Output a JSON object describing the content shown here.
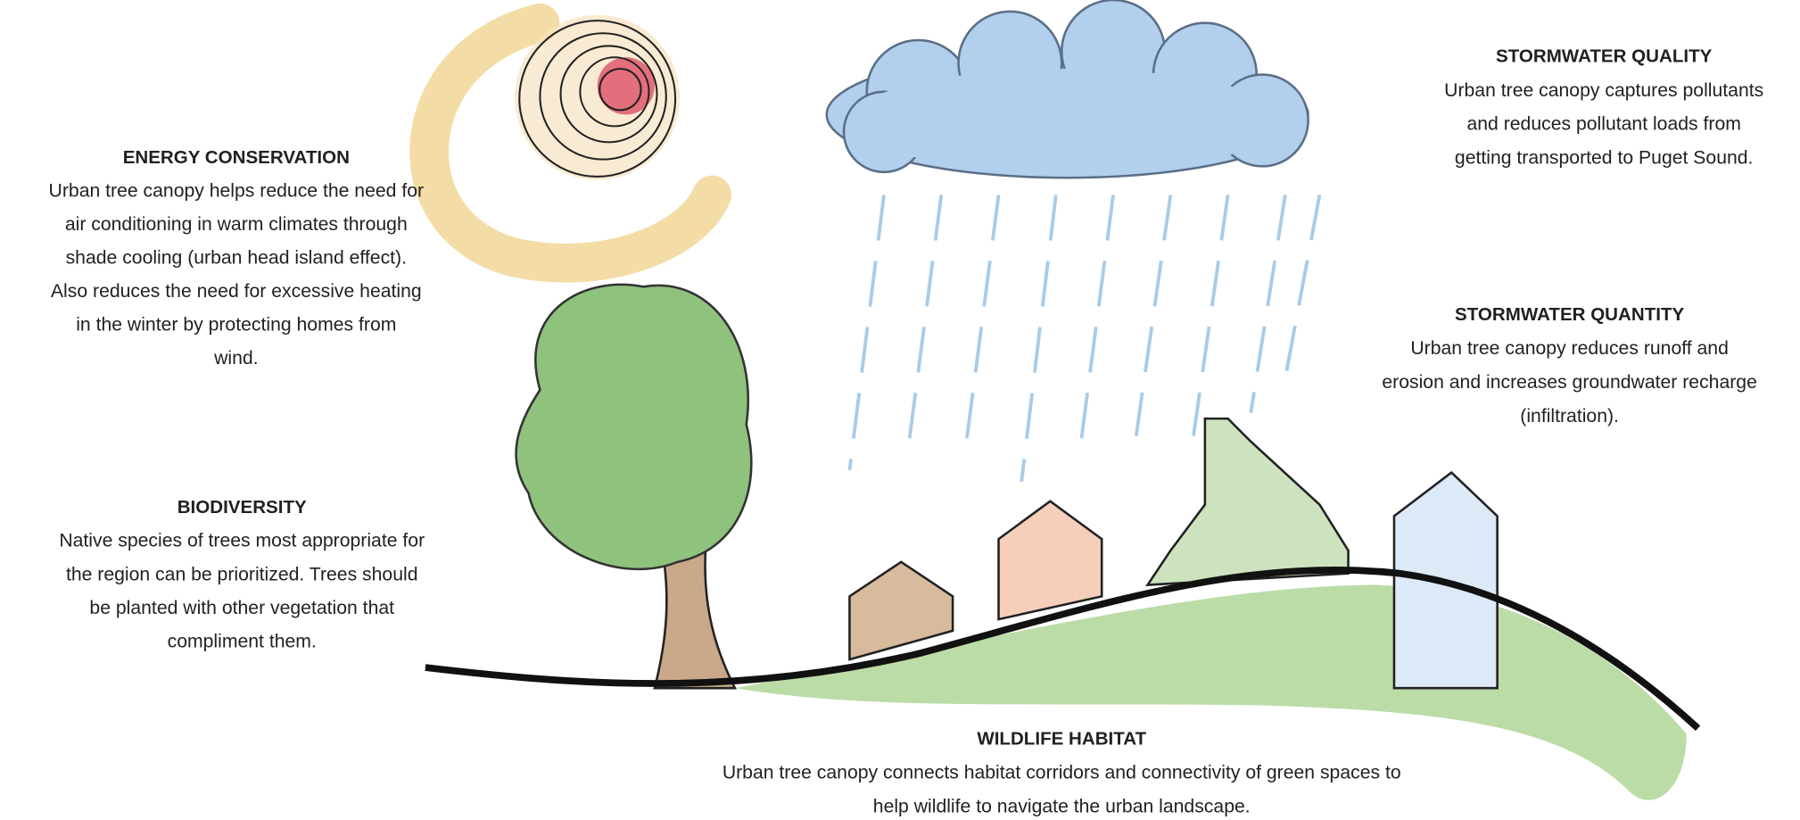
{
  "sections": [
    {
      "title": "ENERGY CONSERVATION",
      "lines": [
        "Urban tree canopy helps reduce the need for",
        "air conditioning in warm climates through",
        "shade cooling (urban head island effect).",
        "Also reduces the need for excessive heating",
        "in the winter by protecting homes from",
        "wind."
      ]
    },
    {
      "title": "STORMWATER QUALITY",
      "lines": [
        "Urban tree canopy captures pollutants",
        "and reduces pollutant loads from",
        "getting transported to Puget Sound."
      ]
    },
    {
      "title": "STORMWATER QUANTITY",
      "lines": [
        "Urban tree canopy reduces runoff and",
        "erosion and increases groundwater recharge",
        "(infiltration)."
      ]
    },
    {
      "title": "BIODIVERSITY",
      "lines": [
        "Native species of trees most appropriate for",
        "the region can be prioritized. Trees should",
        "be planted with other vegetation that",
        "compliment them."
      ]
    },
    {
      "title": "WILDLIFE HABITAT",
      "lines": [
        "Urban tree canopy connects habitat corridors and connectivity of green spaces to",
        "help wildlife to navigate the urban landscape."
      ]
    }
  ]
}
